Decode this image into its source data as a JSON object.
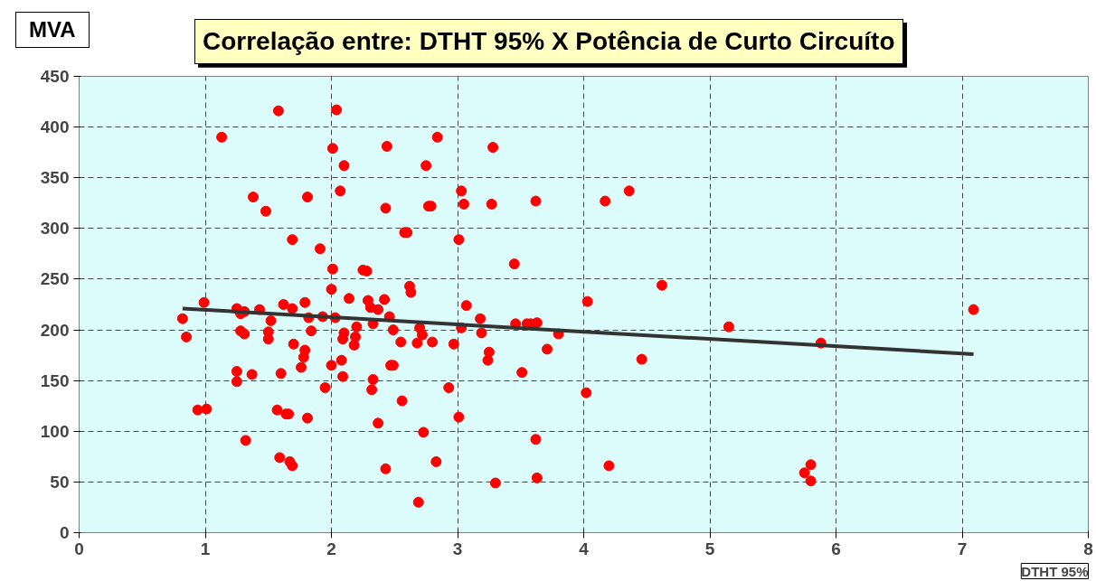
{
  "chart_data": {
    "type": "scatter",
    "title": "Correlação entre:  DTHT 95% X Potência de Curto Circuíto",
    "xlabel": "DTHT 95%",
    "ylabel": "MVA",
    "xlim": [
      0,
      8
    ],
    "xticks": [
      0,
      1,
      2,
      3,
      4,
      5,
      6,
      7,
      8
    ],
    "ylim": [
      0,
      450
    ],
    "yticks": [
      0,
      50,
      100,
      150,
      200,
      250,
      300,
      350,
      400,
      450
    ],
    "grid": true,
    "marker": "circle",
    "series": [
      {
        "color": "#ff0000",
        "x": [
          0.82,
          0.85,
          0.99,
          0.94,
          1.01,
          1.13,
          1.38,
          1.48,
          1.58,
          1.25,
          1.28,
          1.31,
          1.28,
          1.31,
          1.25,
          1.25,
          1.32,
          1.37,
          1.43,
          1.5,
          1.5,
          1.52,
          1.57,
          1.59,
          1.6,
          1.62,
          1.64,
          1.66,
          1.67,
          1.69,
          1.69,
          1.69,
          1.7,
          1.76,
          1.78,
          1.79,
          1.79,
          1.81,
          1.82,
          1.84,
          1.81,
          1.91,
          1.93,
          1.95,
          2.0,
          2.0,
          2.01,
          2.01,
          2.03,
          2.04,
          2.07,
          2.08,
          2.09,
          2.09,
          2.1,
          2.1,
          2.14,
          2.18,
          2.19,
          2.2,
          2.25,
          2.28,
          2.29,
          2.31,
          2.32,
          2.33,
          2.33,
          2.37,
          2.37,
          2.42,
          2.43,
          2.43,
          2.44,
          2.46,
          2.47,
          2.49,
          2.49,
          2.55,
          2.56,
          2.58,
          2.6,
          2.62,
          2.63,
          2.68,
          2.69,
          2.7,
          2.72,
          2.73,
          2.75,
          2.77,
          2.79,
          2.8,
          2.83,
          2.84,
          2.93,
          2.97,
          3.01,
          3.01,
          3.03,
          3.03,
          3.05,
          3.07,
          3.18,
          3.19,
          3.24,
          3.25,
          3.27,
          3.28,
          3.3,
          3.45,
          3.46,
          3.51,
          3.55,
          3.58,
          3.62,
          3.62,
          3.63,
          3.63,
          3.71,
          3.8,
          4.02,
          4.03,
          4.17,
          4.2,
          4.36,
          4.46,
          4.62,
          5.15,
          5.75,
          5.8,
          5.8,
          5.88,
          7.09
        ],
        "values": [
          211,
          193,
          227,
          121,
          122,
          390,
          331,
          317,
          416,
          221,
          216,
          218,
          199,
          196,
          159,
          149,
          91,
          156,
          220,
          191,
          198,
          209,
          121,
          74,
          157,
          225,
          117,
          117,
          70,
          66,
          289,
          221,
          186,
          163,
          173,
          180,
          227,
          113,
          212,
          199,
          331,
          280,
          213,
          143,
          165,
          240,
          260,
          379,
          212,
          417,
          337,
          170,
          154,
          191,
          197,
          362,
          231,
          185,
          193,
          203,
          259,
          258,
          229,
          222,
          141,
          151,
          206,
          220,
          108,
          230,
          320,
          63,
          381,
          213,
          165,
          165,
          200,
          188,
          130,
          296,
          296,
          243,
          237,
          187,
          30,
          202,
          195,
          99,
          362,
          322,
          322,
          188,
          70,
          390,
          143,
          186,
          114,
          289,
          337,
          202,
          324,
          224,
          211,
          197,
          170,
          178,
          324,
          380,
          49,
          265,
          206,
          158,
          206,
          206,
          92,
          327,
          54,
          207,
          181,
          196,
          138,
          228,
          327,
          66,
          337,
          171,
          244,
          203,
          59,
          67,
          51,
          187,
          220
        ]
      },
      {
        "type": "line",
        "color": "#333333",
        "x": [
          0.82,
          7.09
        ],
        "values": [
          221,
          176
        ],
        "marker": "none"
      }
    ]
  }
}
